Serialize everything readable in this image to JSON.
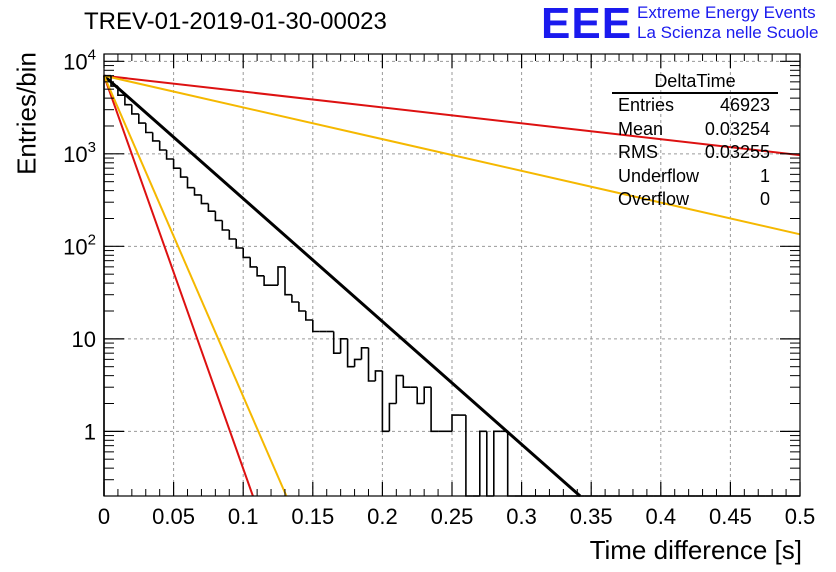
{
  "header": {
    "title": "TREV-01-2019-01-30-00023",
    "logo_mark": "EEE",
    "logo_line1": "Extreme Energy Events",
    "logo_line2": "La Scienza nelle Scuole"
  },
  "stats": {
    "title": "DeltaTime",
    "rows": [
      {
        "label": "Entries",
        "value": "46923"
      },
      {
        "label": "Mean",
        "value": "0.03254"
      },
      {
        "label": "RMS",
        "value": "0.03255"
      },
      {
        "label": "Underflow",
        "value": "1"
      },
      {
        "label": "Overflow",
        "value": "0"
      }
    ]
  },
  "colors": {
    "histogram": "#000000",
    "fit": "#000000",
    "red_line": "#dd1111",
    "yellow_line": "#f5b800",
    "grid": "#9a9a9a"
  },
  "chart_data": {
    "type": "histogram",
    "title": "TREV-01-2019-01-30-00023",
    "xlabel": "Time difference [s]",
    "ylabel": "Entries/bin",
    "xlim": [
      0,
      0.5
    ],
    "ylim": [
      0.2,
      12000
    ],
    "yscale": "log",
    "grid": true,
    "x_ticks": [
      "0",
      "0.05",
      "0.1",
      "0.15",
      "0.2",
      "0.25",
      "0.3",
      "0.35",
      "0.4",
      "0.45",
      "0.5"
    ],
    "y_ticks": [
      {
        "value": 1,
        "label": "1"
      },
      {
        "value": 10,
        "label": "10"
      },
      {
        "value": 100,
        "label": "10^2"
      },
      {
        "value": 1000,
        "label": "10^3"
      },
      {
        "value": 10000,
        "label": "10^4"
      }
    ],
    "bin_width": 0.005,
    "bin_counts": [
      7000,
      5400,
      4300,
      3400,
      2700,
      2150,
      1700,
      1380,
      1100,
      880,
      700,
      560,
      430,
      360,
      290,
      240,
      190,
      150,
      120,
      96,
      76,
      60,
      48,
      38,
      38,
      60,
      30,
      25,
      20,
      16,
      12,
      12,
      12,
      7,
      10,
      5,
      6,
      8,
      3.5,
      4.5,
      1,
      2,
      4,
      3,
      3,
      2,
      3,
      1,
      1,
      1,
      1.5,
      1.5,
      0.1,
      0.1,
      1,
      0.1,
      1,
      1,
      0.1,
      0.1,
      0.1,
      0.1,
      0.1,
      0.1,
      0.1,
      0.1,
      0.1,
      0.1,
      0.1,
      0.1,
      0.1,
      0.1,
      0.1,
      0.1,
      0.1,
      0.1,
      0.1,
      0.1,
      0.1,
      0.1,
      0.1,
      0.1,
      0.1,
      0.1,
      0.1,
      0.1,
      0.1,
      0.1,
      0.1,
      0.1,
      0.1,
      0.1,
      0.1,
      0.1,
      0.1,
      0.1,
      0.1,
      0.1,
      0.1,
      0.1
    ],
    "curves": [
      {
        "color": "black",
        "points": [
          [
            0,
            7000
          ],
          [
            0.342,
            0.2
          ]
        ]
      },
      {
        "color": "red",
        "points": [
          [
            0,
            7000
          ],
          [
            0.5,
            970
          ]
        ]
      },
      {
        "color": "yellow",
        "points": [
          [
            0,
            7000
          ],
          [
            0.5,
            135
          ]
        ]
      },
      {
        "color": "red",
        "points": [
          [
            0,
            7000
          ],
          [
            0.107,
            0.2
          ]
        ]
      },
      {
        "color": "yellow",
        "points": [
          [
            0,
            7000
          ],
          [
            0.131,
            0.2
          ]
        ]
      }
    ]
  }
}
